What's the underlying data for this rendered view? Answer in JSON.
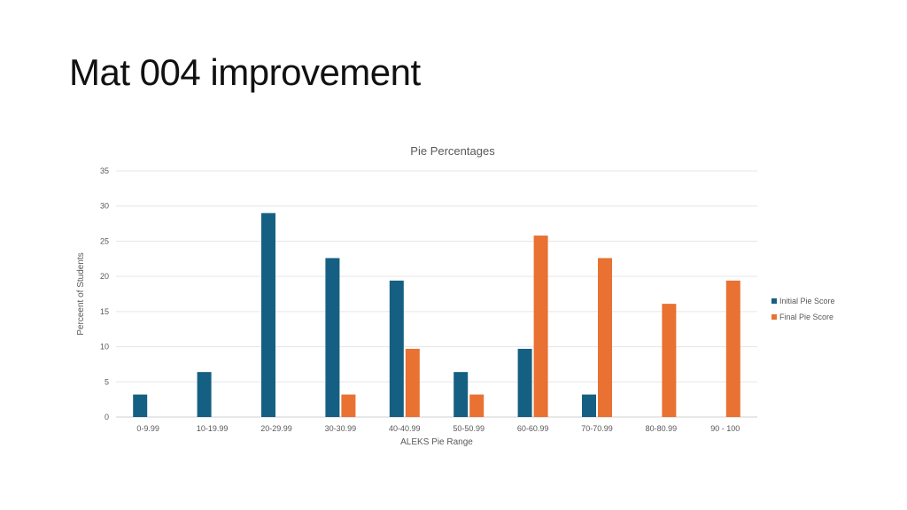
{
  "slide": {
    "title": "Mat 004 improvement"
  },
  "chart_data": {
    "type": "bar",
    "title": "Pie Percentages",
    "xlabel": "ALEKS Pie Range",
    "ylabel": "Perceent of Students",
    "categories": [
      "0-9.99",
      "10-19.99",
      "20-29.99",
      "30-30.99",
      "40-40.99",
      "50-50.99",
      "60-60.99",
      "70-70.99",
      "80-80.99",
      "90 - 100"
    ],
    "series": [
      {
        "name": "Initial Pie Score",
        "color": "#156082",
        "values": [
          3.2,
          6.4,
          29,
          22.6,
          19.4,
          6.4,
          9.7,
          3.2,
          0,
          0
        ]
      },
      {
        "name": "Final Pie Score",
        "color": "#E97132",
        "values": [
          0,
          0,
          0,
          3.2,
          9.7,
          3.2,
          25.8,
          22.6,
          16.1,
          19.4
        ]
      }
    ],
    "ylim": [
      0,
      35
    ],
    "yticks": [
      0,
      5,
      10,
      15,
      20,
      25,
      30,
      35
    ],
    "grid": true,
    "legend_position": "right"
  }
}
